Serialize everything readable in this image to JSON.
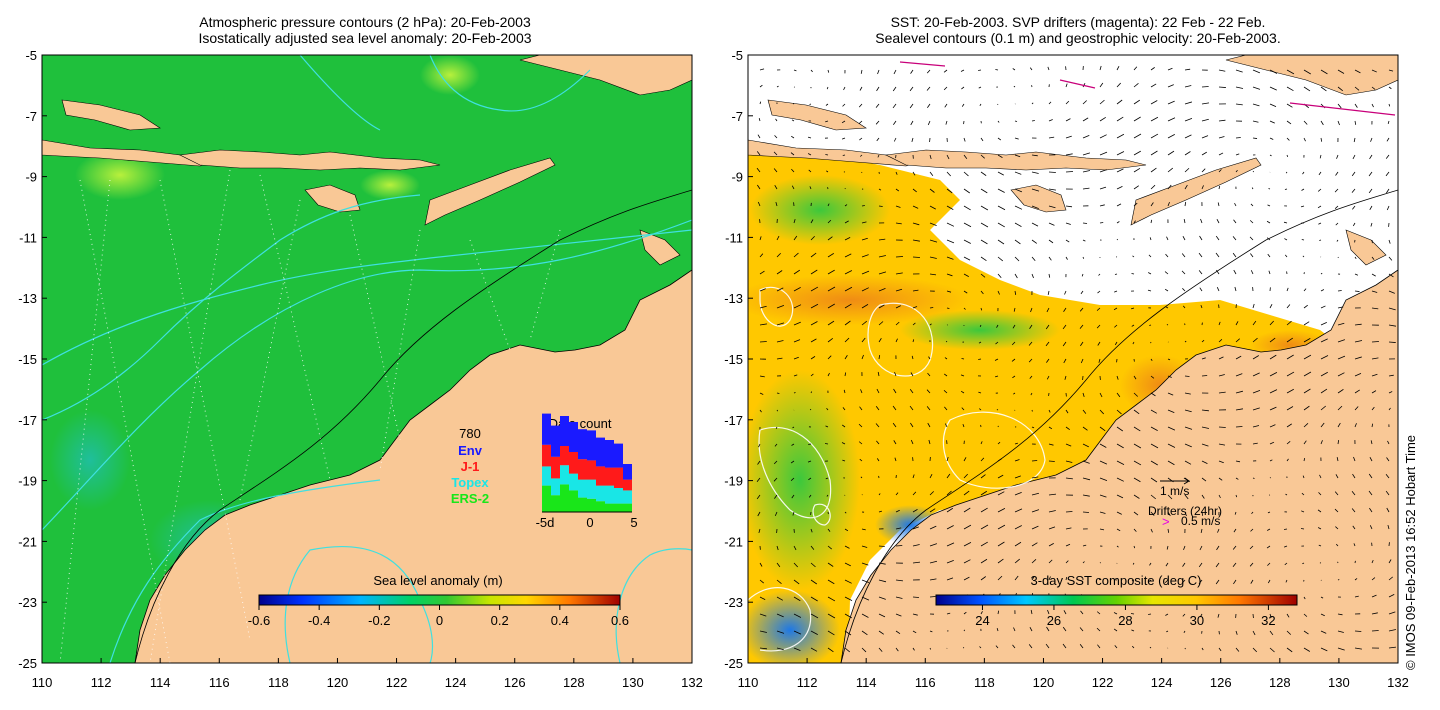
{
  "left_panel": {
    "title_line1": "Atmospheric pressure contours (2 hPa): 20-Feb-2003",
    "title_line2": "Isostatically adjusted sea level anomaly: 20-Feb-2003",
    "colorbar_title": "Sea level anomaly (m)",
    "colorbar_ticks": [
      "-0.6",
      "-0.4",
      "-0.2",
      "0",
      "0.2",
      "0.4",
      "0.6"
    ],
    "colorbar_range": [
      -0.6,
      0.6
    ],
    "data_count": {
      "title": "Data count",
      "max_label": "780",
      "legend": [
        {
          "name": "Env",
          "color": "#1a1aff"
        },
        {
          "name": "J-1",
          "color": "#ff1a1a"
        },
        {
          "name": "Topex",
          "color": "#19e6e6"
        },
        {
          "name": "ERS-2",
          "color": "#19e619"
        }
      ],
      "x_ticks": [
        "-5d",
        "0",
        "5"
      ]
    }
  },
  "right_panel": {
    "title_line1": "SST: 20-Feb-2003. SVP drifters (magenta): 22 Feb - 22 Feb.",
    "title_line2": "Sealevel contours (0.1 m) and geostrophic velocity: 20-Feb-2003.",
    "colorbar_title": "3-day SST composite (deg C)",
    "colorbar_ticks": [
      "24",
      "26",
      "28",
      "30",
      "32"
    ],
    "colorbar_range": [
      22.7,
      32.8
    ],
    "velocity_key": "1 m/s",
    "drifters_label": "Drifters (24hr)",
    "drifter_key": "0.5 m/s"
  },
  "axes": {
    "y_ticks": [
      "-5",
      "-7",
      "-9",
      "-11",
      "-13",
      "-15",
      "-17",
      "-19",
      "-21",
      "-23",
      "-25"
    ],
    "x_ticks": [
      "110",
      "112",
      "114",
      "116",
      "118",
      "120",
      "122",
      "124",
      "126",
      "128",
      "130",
      "132"
    ],
    "lon_range": [
      110,
      132
    ],
    "lat_range": [
      -25,
      -5
    ]
  },
  "credit": "© IMOS 09-Feb-2013 16:52 Hobart Time",
  "colors": {
    "land": "#f9c896",
    "ocean_left": "#1fc03c",
    "ocean_right": "#ffc800",
    "contour_cyan": "#3fe0e0",
    "contour_white": "#ffffff"
  }
}
